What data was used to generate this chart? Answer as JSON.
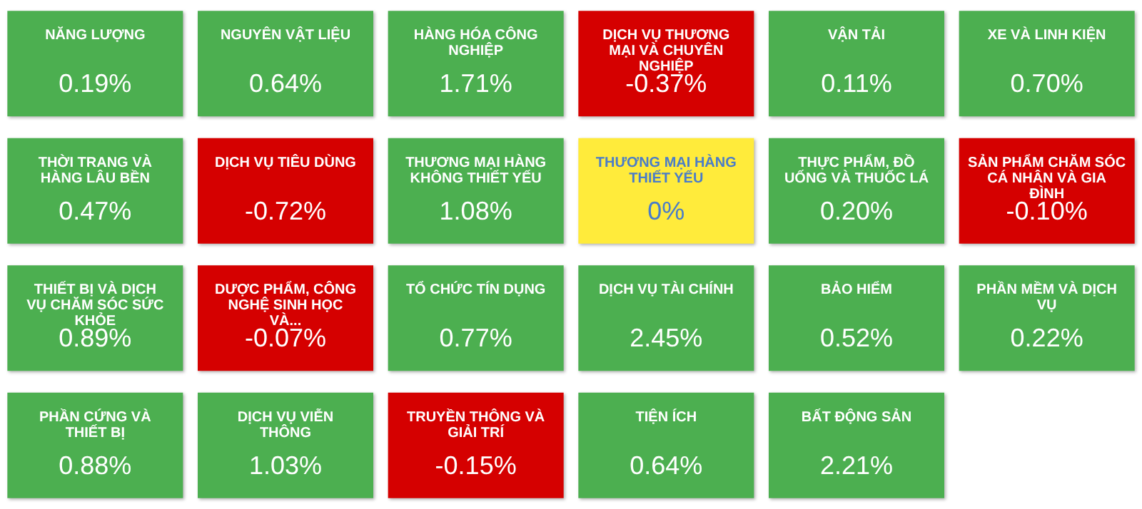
{
  "chart_data": {
    "type": "other",
    "categories": [
      "NĂNG LƯỢNG",
      "NGUYÊN VẬT LIỆU",
      "HÀNG HÓA CÔNG NGHIỆP",
      "DỊCH VỤ THƯƠNG MẠI VÀ CHUYÊN NGHIỆP",
      "VẬN TẢI",
      "XE VÀ LINH KIỆN",
      "THỜI TRANG VÀ HÀNG LÂU BỀN",
      "DỊCH VỤ TIÊU DÙNG",
      "THƯƠNG MẠI HÀNG KHÔNG THIẾT YẾU",
      "THƯƠNG MẠI HÀNG THIẾT YẾU",
      "THỰC PHẨM, ĐỒ UỐNG VÀ THUỐC LÁ",
      "SẢN PHẨM CHĂM SÓC CÁ NHÂN VÀ GIA ĐÌNH",
      "THIẾT BỊ VÀ DỊCH VỤ CHĂM SÓC SỨC KHỎE",
      "DƯỢC PHẨM, CÔNG NGHỆ SINH HỌC VÀ...",
      "TỔ CHỨC TÍN DỤNG",
      "DỊCH VỤ TÀI CHÍNH",
      "BẢO HIỂM",
      "PHẦN MỀM VÀ DỊCH VỤ",
      "PHẦN CỨNG VÀ THIẾT BỊ",
      "DỊCH VỤ VIỄN THÔNG",
      "TRUYỀN THÔNG VÀ GIẢI TRÍ",
      "TIỆN ÍCH",
      "BẤT ĐỘNG SẢN"
    ],
    "values": [
      0.19,
      0.64,
      1.71,
      -0.37,
      0.11,
      0.7,
      0.47,
      -0.72,
      1.08,
      0,
      0.2,
      -0.1,
      0.89,
      -0.07,
      0.77,
      2.45,
      0.52,
      0.22,
      0.88,
      1.03,
      -0.15,
      0.64,
      2.21
    ],
    "value_labels": [
      "0.19%",
      "0.64%",
      "1.71%",
      "-0.37%",
      "0.11%",
      "0.70%",
      "0.47%",
      "-0.72%",
      "1.08%",
      "0%",
      "0.20%",
      "-0.10%",
      "0.89%",
      "-0.07%",
      "0.77%",
      "2.45%",
      "0.52%",
      "0.22%",
      "0.88%",
      "1.03%",
      "-0.15%",
      "0.64%",
      "2.21%"
    ]
  }
}
